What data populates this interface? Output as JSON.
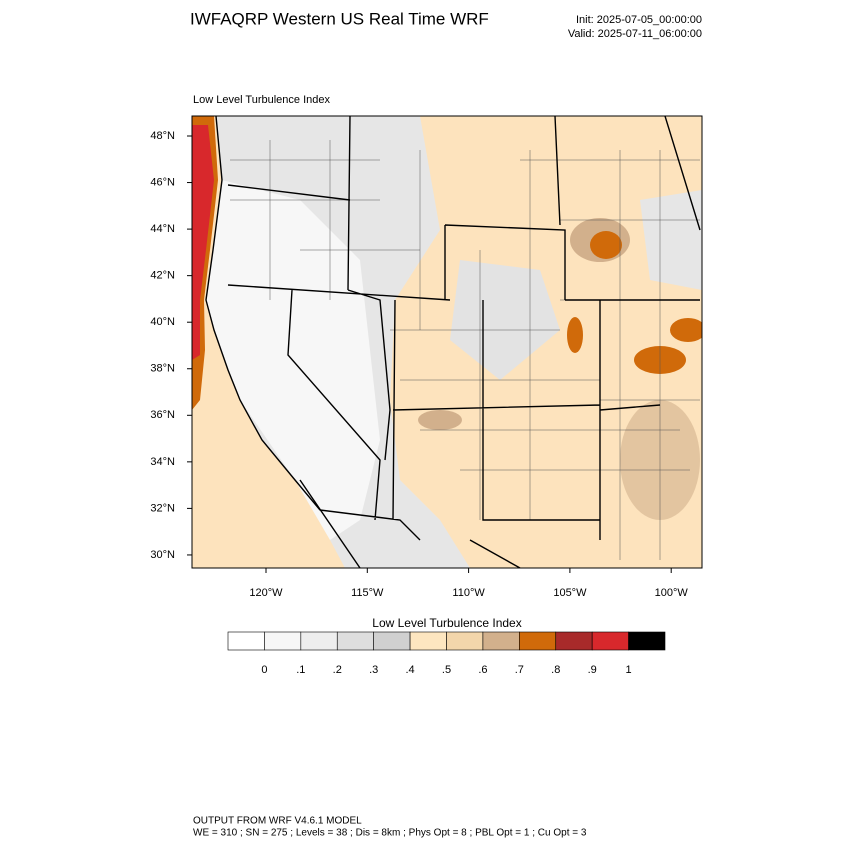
{
  "header": {
    "title": "IWFAQRP Western US Real Time WRF",
    "init": "Init: 2025-07-05_00:00:00",
    "valid": "Valid: 2025-07-11_06:00:00"
  },
  "map": {
    "title": "Low Level Turbulence Index",
    "lat_labels": [
      "48°N",
      "46°N",
      "44°N",
      "42°N",
      "40°N",
      "38°N",
      "36°N",
      "34°N",
      "32°N",
      "30°N"
    ],
    "lon_labels": [
      "120°W",
      "115°W",
      "110°W",
      "105°W",
      "100°W"
    ]
  },
  "colorbar": {
    "title": "Low Level Turbulence Index",
    "colors": [
      "#ffffff",
      "#f7f7f7",
      "#eeeeee",
      "#dedede",
      "#d0d0d0",
      "#fde6c0",
      "#f3d6ab",
      "#d2b08c",
      "#d06a0a",
      "#a82a2a",
      "#d8282c",
      "#000000"
    ],
    "labels": [
      "0",
      ".1",
      ".2",
      ".3",
      ".4",
      ".5",
      ".6",
      ".7",
      ".8",
      ".9",
      "1"
    ]
  },
  "footer": {
    "line1": "OUTPUT FROM WRF V4.6.1 MODEL",
    "line2": "WE = 310 ; SN = 275 ; Levels = 38 ; Dis = 8km ; Phys Opt = 8 ; PBL Opt = 1 ; Cu Opt = 3"
  }
}
